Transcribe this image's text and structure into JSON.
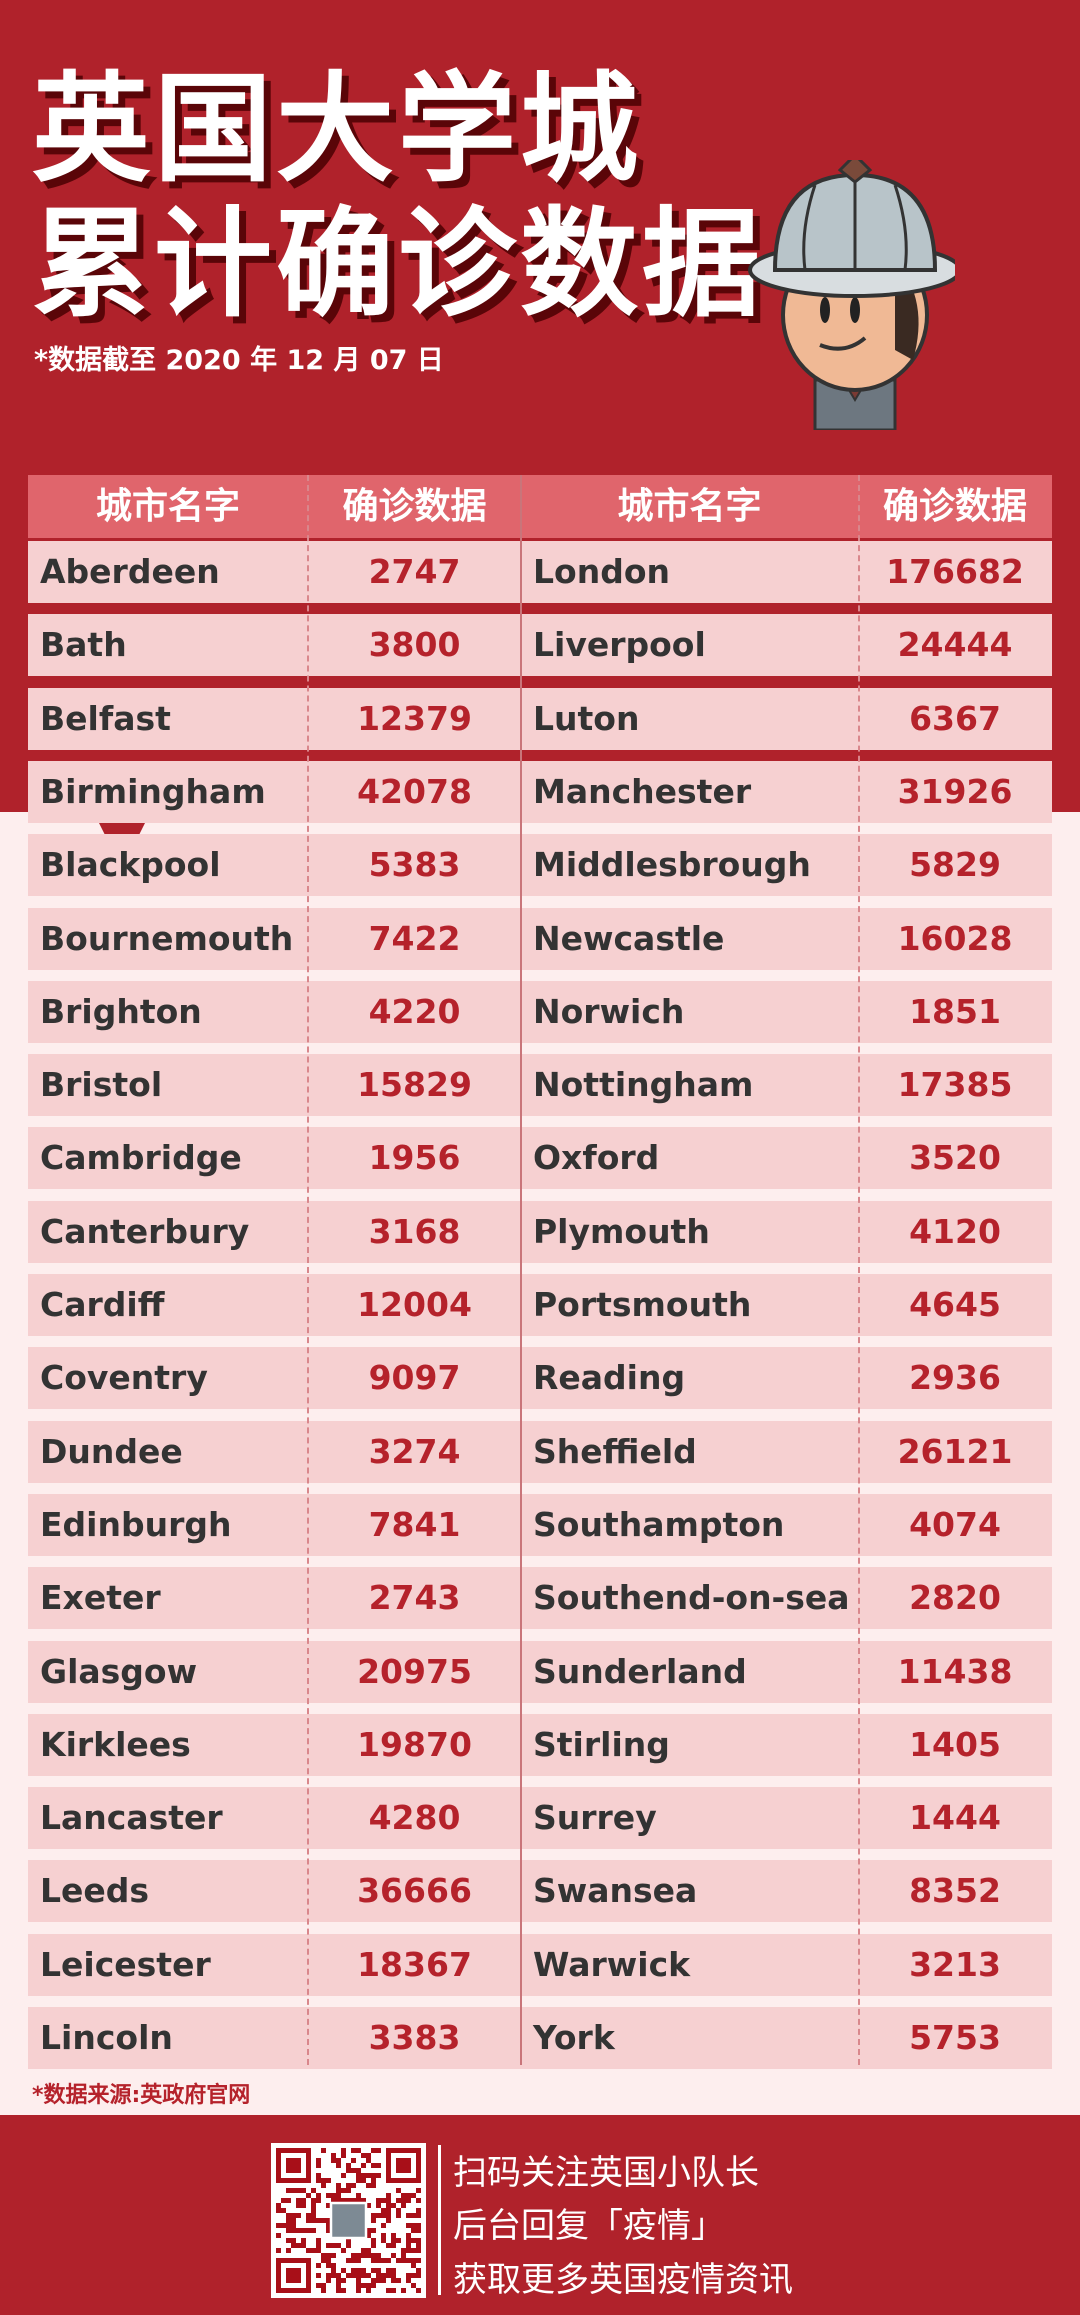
{
  "header": {
    "title_line1": "英国大学城",
    "title_line2": "累计确诊数据",
    "subtitle": "*数据截至 2020 年 12 月 07 日"
  },
  "table": {
    "columns": [
      "城市名字",
      "确诊数据",
      "城市名字",
      "确诊数据"
    ],
    "left": [
      {
        "city": "Aberdeen",
        "cases": "2747"
      },
      {
        "city": "Bath",
        "cases": "3800"
      },
      {
        "city": "Belfast",
        "cases": "12379"
      },
      {
        "city": "Birmingham",
        "cases": "42078"
      },
      {
        "city": "Blackpool",
        "cases": "5383"
      },
      {
        "city": "Bournemouth",
        "cases": "7422"
      },
      {
        "city": "Brighton",
        "cases": "4220"
      },
      {
        "city": "Bristol",
        "cases": "15829"
      },
      {
        "city": "Cambridge",
        "cases": "1956"
      },
      {
        "city": "Canterbury",
        "cases": "3168"
      },
      {
        "city": "Cardiff",
        "cases": "12004"
      },
      {
        "city": "Coventry",
        "cases": "9097"
      },
      {
        "city": "Dundee",
        "cases": "3274"
      },
      {
        "city": "Edinburgh",
        "cases": "7841"
      },
      {
        "city": "Exeter",
        "cases": "2743"
      },
      {
        "city": "Glasgow",
        "cases": "20975"
      },
      {
        "city": "Kirklees",
        "cases": "19870"
      },
      {
        "city": "Lancaster",
        "cases": "4280"
      },
      {
        "city": "Leeds",
        "cases": "36666"
      },
      {
        "city": "Leicester",
        "cases": "18367"
      },
      {
        "city": "Lincoln",
        "cases": "3383"
      }
    ],
    "right": [
      {
        "city": "London",
        "cases": "176682"
      },
      {
        "city": "Liverpool",
        "cases": "24444"
      },
      {
        "city": "Luton",
        "cases": "6367"
      },
      {
        "city": "Manchester",
        "cases": "31926"
      },
      {
        "city": "Middlesbrough",
        "cases": "5829"
      },
      {
        "city": "Newcastle",
        "cases": "16028"
      },
      {
        "city": "Norwich",
        "cases": "1851"
      },
      {
        "city": "Nottingham",
        "cases": "17385"
      },
      {
        "city": "Oxford",
        "cases": "3520"
      },
      {
        "city": "Plymouth",
        "cases": "4120"
      },
      {
        "city": "Portsmouth",
        "cases": "4645"
      },
      {
        "city": "Reading",
        "cases": "2936"
      },
      {
        "city": "Sheffield",
        "cases": "26121"
      },
      {
        "city": "Southampton",
        "cases": "4074"
      },
      {
        "city": "Southend-on-sea",
        "cases": "2820"
      },
      {
        "city": "Sunderland",
        "cases": "11438"
      },
      {
        "city": "Stirling",
        "cases": "1405"
      },
      {
        "city": "Surrey",
        "cases": "1444"
      },
      {
        "city": "Swansea",
        "cases": "8352"
      },
      {
        "city": "Warwick",
        "cases": "3213"
      },
      {
        "city": "York",
        "cases": "5753"
      }
    ]
  },
  "source_note": "*数据来源:英政府官网",
  "footer": {
    "lines": [
      "扫码关注英国小队长",
      "后台回复「疫情」",
      "获取更多英国疫情资讯"
    ]
  },
  "colors": {
    "brand_red": "#b0222b",
    "header_row": "#e0656c",
    "row_bg": "#f6d0d1",
    "number_red": "#b5222b"
  }
}
